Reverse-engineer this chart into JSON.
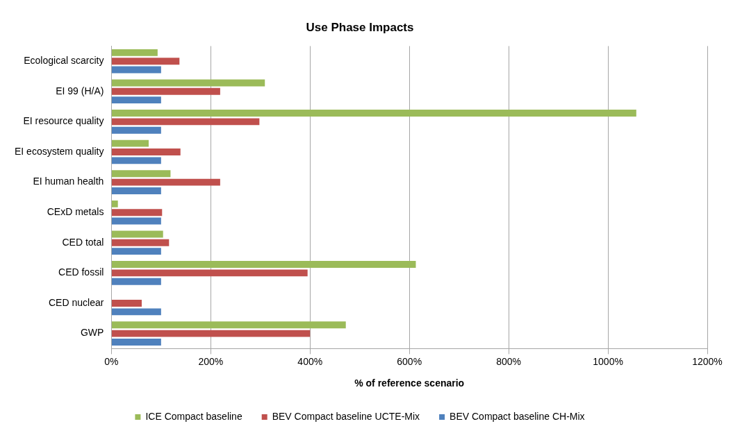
{
  "chart_data": {
    "type": "bar",
    "orientation": "horizontal",
    "title": "Use Phase Impacts",
    "xlabel": "% of reference scenario",
    "categories": [
      "Ecological scarcity",
      "EI 99 (H/A)",
      "EI resource quality",
      "EI ecosystem quality",
      "EI human health",
      "CExD metals",
      "CED total",
      "CED fossil",
      "CED nuclear",
      "GWP"
    ],
    "series": [
      {
        "name": "ICE Compact baseline",
        "color": "#9bbb59",
        "values": [
          93,
          309,
          1057,
          75,
          119,
          13,
          104,
          613,
          null,
          472
        ]
      },
      {
        "name": "BEV Compact baseline UCTE-Mix",
        "color": "#c0504d",
        "values": [
          137,
          219,
          298,
          139,
          219,
          102,
          116,
          395,
          61,
          400
        ]
      },
      {
        "name": "BEV Compact baseline CH-Mix",
        "color": "#4f81bd",
        "values": [
          100,
          100,
          100,
          100,
          100,
          100,
          100,
          100,
          100,
          100
        ]
      }
    ],
    "xlim": [
      0,
      1200
    ],
    "xticks": [
      {
        "value": 0,
        "label": "0%"
      },
      {
        "value": 200,
        "label": "200%"
      },
      {
        "value": 400,
        "label": "400%"
      },
      {
        "value": 600,
        "label": "600%"
      },
      {
        "value": 800,
        "label": "800%"
      },
      {
        "value": 1000,
        "label": "1000%"
      },
      {
        "value": 1200,
        "label": "1200%"
      }
    ],
    "grid": "x",
    "legend": "bottom"
  }
}
